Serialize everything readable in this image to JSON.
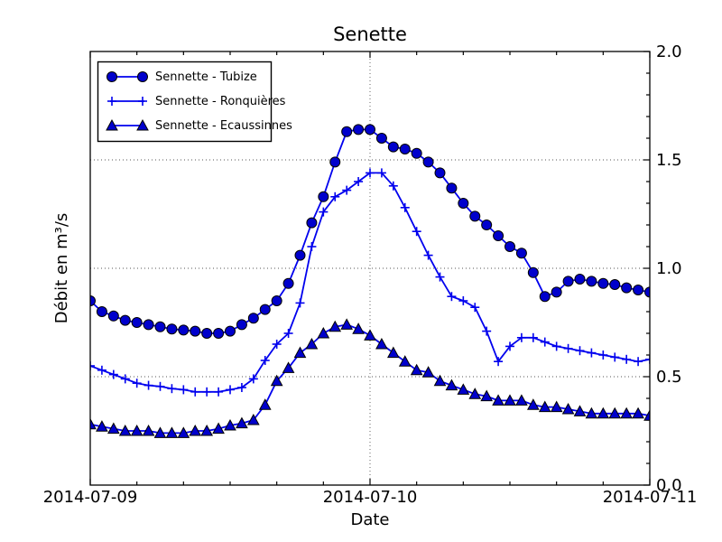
{
  "chart_data": {
    "type": "line",
    "title": "Senette",
    "xlabel": "Date",
    "ylabel": "Débit en m³/s",
    "x_unit": "hours since 2014-07-09 00:00",
    "xlim_hours": [
      0,
      48
    ],
    "ylim": [
      0.0,
      2.0
    ],
    "xticks": {
      "hours": [
        0,
        24,
        48
      ],
      "labels": [
        "2014-07-09",
        "2014-07-10",
        "2014-07-11"
      ],
      "minor_step_hours": 4
    },
    "yticks": {
      "values": [
        0.0,
        0.5,
        1.0,
        1.5,
        2.0
      ],
      "labels": [
        "0.0",
        "0.5",
        "1.0",
        "1.5",
        "2.0"
      ],
      "minor_step": 0.1,
      "side": "right"
    },
    "grid": {
      "y_values": [
        0.5,
        1.0,
        1.5
      ],
      "x_hours": [
        24
      ],
      "style": "dotted"
    },
    "legend_position": "upper-left",
    "style": {
      "line_color": "#0000ee",
      "marker_fill": "#0000cc",
      "marker_edge": "#000000",
      "grid_color": "#555555",
      "axes_color": "#000000",
      "background": "#ffffff"
    },
    "series": [
      {
        "name": "Sennette - Tubize",
        "marker": "circle",
        "values": [
          0.85,
          0.8,
          0.78,
          0.76,
          0.75,
          0.74,
          0.73,
          0.72,
          0.715,
          0.71,
          0.7,
          0.7,
          0.71,
          0.74,
          0.77,
          0.81,
          0.85,
          0.93,
          1.06,
          1.21,
          1.33,
          1.49,
          1.63,
          1.64,
          1.64,
          1.6,
          1.56,
          1.55,
          1.53,
          1.49,
          1.44,
          1.37,
          1.3,
          1.24,
          1.2,
          1.15,
          1.1,
          1.07,
          0.98,
          0.87,
          0.89,
          0.94,
          0.95,
          0.94,
          0.93,
          0.925,
          0.91,
          0.9,
          0.89
        ]
      },
      {
        "name": "Sennette - Ronquières",
        "marker": "plus",
        "values": [
          0.55,
          0.53,
          0.51,
          0.49,
          0.47,
          0.46,
          0.455,
          0.445,
          0.44,
          0.43,
          0.43,
          0.43,
          0.44,
          0.45,
          0.49,
          0.575,
          0.65,
          0.7,
          0.84,
          1.1,
          1.26,
          1.33,
          1.36,
          1.4,
          1.44,
          1.44,
          1.38,
          1.28,
          1.17,
          1.06,
          0.96,
          0.87,
          0.85,
          0.82,
          0.71,
          0.57,
          0.64,
          0.68,
          0.68,
          0.66,
          0.64,
          0.63,
          0.62,
          0.61,
          0.6,
          0.59,
          0.58,
          0.57,
          0.58
        ]
      },
      {
        "name": "Sennette - Ecaussinnes",
        "marker": "triangle",
        "values": [
          0.28,
          0.27,
          0.26,
          0.25,
          0.25,
          0.25,
          0.24,
          0.24,
          0.24,
          0.25,
          0.25,
          0.26,
          0.275,
          0.285,
          0.3,
          0.37,
          0.48,
          0.54,
          0.61,
          0.65,
          0.7,
          0.73,
          0.74,
          0.72,
          0.69,
          0.65,
          0.61,
          0.57,
          0.53,
          0.52,
          0.48,
          0.46,
          0.44,
          0.42,
          0.41,
          0.39,
          0.39,
          0.39,
          0.37,
          0.36,
          0.36,
          0.35,
          0.34,
          0.33,
          0.33,
          0.33,
          0.33,
          0.33,
          0.32
        ]
      }
    ]
  }
}
